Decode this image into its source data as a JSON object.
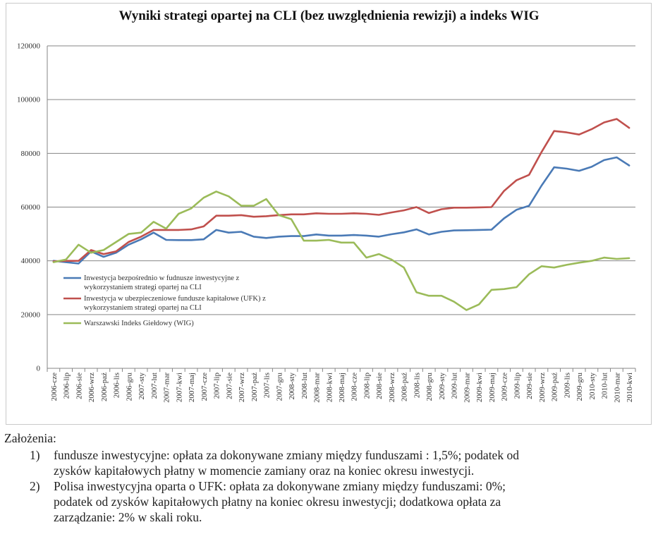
{
  "chart_data": {
    "type": "line",
    "title": "Wyniki strategi opartej na CLI (bez uwzględnienia rewizji) a indeks WIG",
    "xlabel": "",
    "ylabel": "",
    "ylim": [
      0,
      120000
    ],
    "yticks": [
      0,
      20000,
      40000,
      60000,
      80000,
      100000,
      120000
    ],
    "ytick_labels": [
      "0",
      "20000",
      "40000",
      "60000",
      "80000",
      "100000",
      "120000"
    ],
    "grid": true,
    "legend_position": "inside-left",
    "categories": [
      "2006-cze",
      "2006-lip",
      "2006-sie",
      "2006-wrz",
      "2006-paź",
      "2006-lis",
      "2006-gru",
      "2007-sty",
      "2007-lut",
      "2007-mar",
      "2007-kwi",
      "2007-maj",
      "2007-cze",
      "2007-lip",
      "2007-sie",
      "2007-wrz",
      "2007-paź",
      "2007-lis",
      "2007-gru",
      "2008-sty",
      "2008-lut",
      "2008-mar",
      "2008-kwi",
      "2008-maj",
      "2008-cze",
      "2008-lip",
      "2008-sie",
      "2008-wrz",
      "2008-paź",
      "2008-lis",
      "2008-gru",
      "2009-sty",
      "2009-lut",
      "2009-mar",
      "2009-kwi",
      "2009-maj",
      "2009-cze",
      "2009-lip",
      "2009-sie",
      "2009-wrz",
      "2009-paź",
      "2009-lis",
      "2009-gru",
      "2010-sty",
      "2010-lut",
      "2010-mar",
      "2010-kwi"
    ],
    "series": [
      {
        "name": "Inwestycja bezpośrednio w fudnusze inwestycyjne z wykorzystaniem strategi opartej na CLI",
        "color": "#4a7ab6",
        "values": [
          40000,
          39500,
          39000,
          43500,
          41500,
          43000,
          46000,
          48000,
          50500,
          47800,
          47700,
          47700,
          48000,
          51500,
          50500,
          50800,
          49000,
          48500,
          49000,
          49200,
          49200,
          49800,
          49400,
          49400,
          49600,
          49400,
          49000,
          49900,
          50600,
          51700,
          49800,
          50800,
          51300,
          51400,
          51500,
          51600,
          55800,
          59000,
          60500,
          68000,
          74800,
          74300,
          73500,
          75000,
          77500,
          78500,
          75500
        ]
      },
      {
        "name": "Inwestycja w ubezpieczeniowe fundusze kapitałowe (UFK) z wykorzystaniem strategi opartej na CLI",
        "color": "#c0504d",
        "values": [
          39800,
          40000,
          40000,
          44000,
          42500,
          43500,
          47000,
          49000,
          51500,
          51500,
          51500,
          51700,
          52800,
          56800,
          56800,
          57000,
          56400,
          56600,
          57000,
          57300,
          57300,
          57700,
          57500,
          57500,
          57700,
          57500,
          57100,
          58000,
          58800,
          60000,
          57800,
          59200,
          59800,
          59800,
          59900,
          60000,
          66000,
          70000,
          72000,
          80500,
          88300,
          87800,
          87000,
          89000,
          91500,
          92800,
          89500
        ]
      },
      {
        "name": "Warszawski Indeks Giełdowy (WIG)",
        "color": "#9bbb59",
        "values": [
          39500,
          40500,
          46000,
          43000,
          44000,
          47000,
          50000,
          50500,
          54500,
          52000,
          57500,
          59500,
          63500,
          65800,
          64000,
          60500,
          60500,
          63000,
          57000,
          55500,
          47500,
          47500,
          47800,
          46800,
          46800,
          41200,
          42500,
          40500,
          37500,
          28300,
          27000,
          27000,
          24800,
          21700,
          23800,
          29200,
          29500,
          30200,
          35000,
          38000,
          37500,
          38500,
          39300,
          40000,
          41200,
          40700,
          41000
        ]
      }
    ]
  },
  "notes": {
    "heading": "Założenia:",
    "items": [
      {
        "number": "1)",
        "lines": [
          "fundusze inwestycyjne: opłata za dokonywane zmiany między funduszami : 1,5%; podatek od",
          "zysków kapitałowych płatny w momencie zamiany oraz na koniec okresu inwestycji."
        ]
      },
      {
        "number": "2)",
        "lines": [
          "Polisa inwestycyjna oparta o UFK: opłata za dokonywane zmiany między funduszami: 0%;",
          "podatek od zysków kapitałowych płatny na koniec okresu inwestycji; dodatkowa opłata za",
          "zarządzanie: 2% w skali roku."
        ]
      }
    ]
  }
}
